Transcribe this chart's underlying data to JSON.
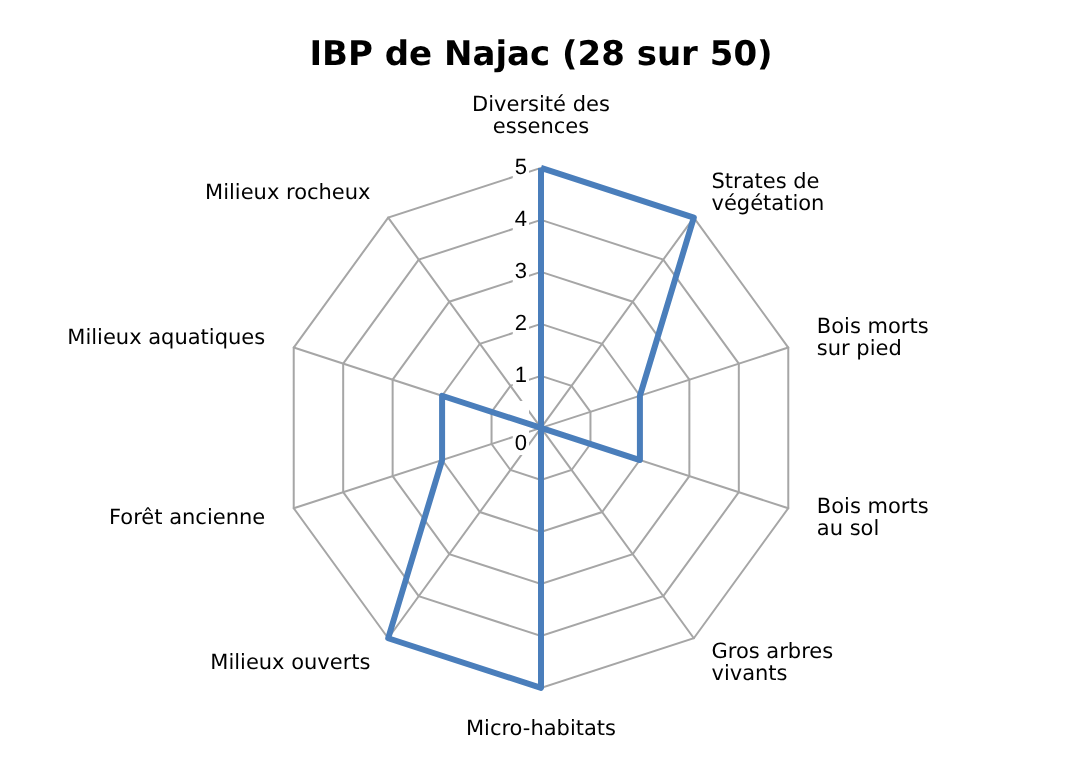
{
  "chart_data": {
    "type": "radar",
    "title": "IBP de Najac (28 sur 50)",
    "categories": [
      "Diversité des essences",
      "Strates de végétation",
      "Bois morts sur pied",
      "Bois morts au sol",
      "Gros arbres vivants",
      "Micro-habitats",
      "Milieux ouverts",
      "Forêt ancienne",
      "Milieux aquatiques",
      "Milieux rocheux"
    ],
    "series": [
      {
        "color": "#4a7ebb",
        "values": [
          5,
          5,
          2,
          2,
          0,
          5,
          5,
          2,
          2,
          0
        ]
      }
    ],
    "ylim": [
      0,
      5
    ],
    "yticks": [
      0,
      1,
      2,
      3,
      4,
      5
    ],
    "grid": true,
    "marker": "none",
    "line_style": "solid"
  }
}
